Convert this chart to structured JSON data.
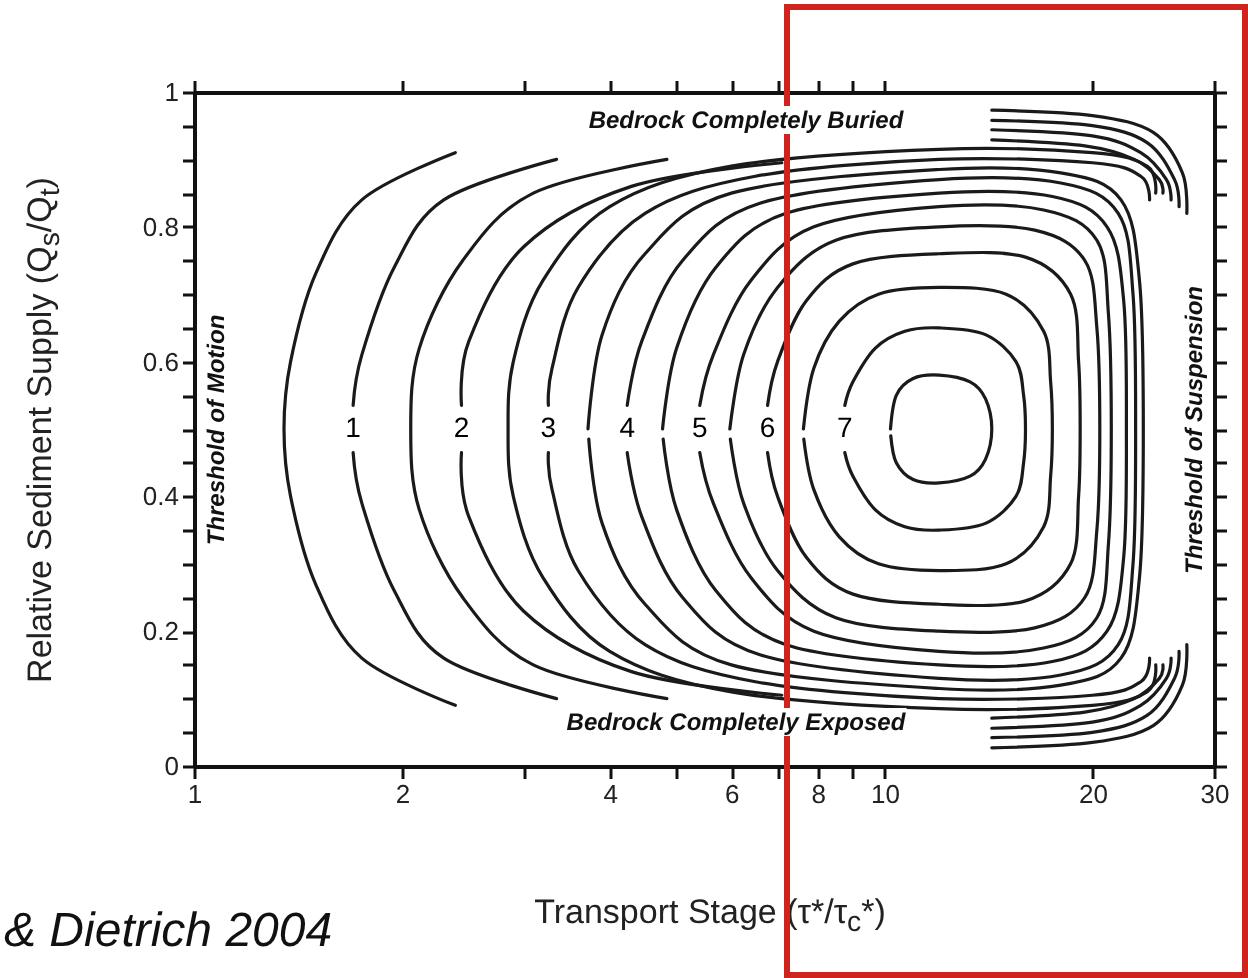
{
  "chart_data": {
    "type": "line",
    "xlabel": "Transport Stage (τ*/τ$_{c}$*)",
    "ylabel": "Relative Sediment Supply (Q$_{s}$/Q$_{t}$)",
    "log": "x",
    "xlim": [
      1,
      30
    ],
    "ylim": [
      0,
      1
    ],
    "xticks": [
      1,
      2,
      {
        "value": 3,
        "label": null
      },
      4,
      {
        "value": 5,
        "label": null
      },
      6,
      {
        "value": 7,
        "label": null
      },
      8,
      {
        "value": 9,
        "label": null
      },
      10,
      20,
      30
    ],
    "yticks": [
      0,
      {
        "value": 0.05,
        "label": null
      },
      {
        "value": 0.1,
        "label": null
      },
      {
        "value": 0.15,
        "label": null
      },
      0.2,
      {
        "value": 0.25,
        "label": null
      },
      {
        "value": 0.3,
        "label": null
      },
      {
        "value": 0.35,
        "label": null
      },
      0.4,
      {
        "value": 0.45,
        "label": null
      },
      {
        "value": 0.5,
        "label": null
      },
      {
        "value": 0.55,
        "label": null
      },
      0.6,
      {
        "value": 0.65,
        "label": null
      },
      {
        "value": 0.7,
        "label": null
      },
      {
        "value": 0.75,
        "label": null
      },
      0.8,
      {
        "value": 0.85,
        "label": null
      },
      {
        "value": 0.9,
        "label": null
      },
      {
        "value": 0.95,
        "label": null
      },
      1
    ],
    "annotations": [
      "Bedrock Completely Buried",
      "Bedrock Completely Exposed",
      "Threshold of Motion",
      "Threshold of Suspension",
      "& Dietrich 2004"
    ],
    "series": [
      {
        "color": "#1a1a1a",
        "x": [
          2.39,
          1.75,
          1.5,
          1.38,
          1.35,
          1.38,
          1.5,
          1.75,
          2.39,
          null,
          14.3,
          20,
          24.5,
          27,
          27.4,
          null,
          27.4,
          27,
          24.5,
          20,
          14.3
        ],
        "values": [
          0.09,
          0.16,
          0.27,
          0.4,
          0.5,
          0.6,
          0.73,
          0.84,
          0.91,
          null,
          0.973,
          0.965,
          0.94,
          0.88,
          0.82,
          null,
          0.18,
          0.12,
          0.06,
          0.035,
          0.027
        ]
      },
      {
        "name": "1",
        "color": "#1a1a1a",
        "x": [
          3.35,
          2.3,
          1.95,
          1.75,
          1.7,
          null,
          1.7,
          1.75,
          1.95,
          2.3,
          3.35,
          null,
          14.3,
          20,
          24,
          26.3,
          26.7,
          null,
          26.7,
          26.3,
          24,
          20,
          14.3
        ],
        "values": [
          0.1,
          0.16,
          0.26,
          0.39,
          0.465,
          null,
          0.535,
          0.61,
          0.74,
          0.84,
          0.9,
          null,
          0.958,
          0.95,
          0.925,
          0.87,
          0.83,
          null,
          0.17,
          0.13,
          0.075,
          0.05,
          0.042
        ]
      },
      {
        "color": "#1a1a1a",
        "x": [
          4.84,
          3.1,
          2.45,
          2.12,
          2.06,
          2.12,
          2.45,
          3.1,
          4.84,
          null,
          14.3,
          20,
          23.5,
          25.6,
          26,
          null,
          26,
          25.6,
          23.5,
          20,
          14.3
        ],
        "values": [
          0.1,
          0.15,
          0.25,
          0.38,
          0.5,
          0.62,
          0.75,
          0.85,
          0.9,
          null,
          0.944,
          0.935,
          0.91,
          0.87,
          0.84,
          null,
          0.16,
          0.13,
          0.09,
          0.065,
          0.056
        ]
      },
      {
        "name": "2",
        "color": "#1a1a1a",
        "x": [
          7.1,
          4.3,
          3,
          2.5,
          2.44,
          null,
          2.44,
          2.5,
          3,
          4.3,
          7.1,
          null,
          14.3,
          19.5,
          23,
          25,
          25.3,
          null,
          25.3,
          25,
          23,
          19.5,
          14.3
        ],
        "values": [
          0.105,
          0.14,
          0.23,
          0.37,
          0.465,
          null,
          0.535,
          0.63,
          0.77,
          0.86,
          0.895,
          null,
          0.929,
          0.92,
          0.9,
          0.87,
          0.85,
          null,
          0.15,
          0.13,
          0.1,
          0.08,
          0.071
        ]
      },
      {
        "color": "#1a1a1a",
        "x": [
          24.7,
          24,
          20,
          12,
          6,
          4,
          3.2,
          2.9,
          2.85,
          2.9,
          3.2,
          4,
          6,
          12,
          20,
          24,
          24.7
        ],
        "values": [
          0.15,
          0.11,
          0.09,
          0.085,
          0.11,
          0.17,
          0.28,
          0.4,
          0.5,
          0.6,
          0.72,
          0.83,
          0.89,
          0.915,
          0.91,
          0.89,
          0.85
        ]
      },
      {
        "name": "3",
        "color": "#1a1a1a",
        "x": [
          24.2,
          23.5,
          20,
          12,
          6.5,
          4.5,
          3.6,
          3.3,
          3.26,
          null,
          3.26,
          3.3,
          3.6,
          4.5,
          6.5,
          12,
          20,
          23.5,
          24.2
        ],
        "values": [
          0.16,
          0.125,
          0.105,
          0.1,
          0.125,
          0.18,
          0.29,
          0.41,
          0.465,
          null,
          0.535,
          0.59,
          0.71,
          0.82,
          0.875,
          0.9,
          0.895,
          0.875,
          0.84
        ]
      },
      {
        "color": "#1a1a1a",
        "x": [
          3.72,
          3.9,
          4.5,
          6,
          12,
          18,
          22,
          23.4,
          23.7,
          23.4,
          22,
          18,
          12,
          6,
          4.5,
          3.9,
          3.73
        ],
        "values": [
          0.5,
          0.64,
          0.76,
          0.85,
          0.885,
          0.88,
          0.84,
          0.72,
          0.5,
          0.28,
          0.16,
          0.12,
          0.115,
          0.15,
          0.24,
          0.36,
          0.485
        ]
      },
      {
        "name": "4",
        "color": "#1a1a1a",
        "x": [
          4.24,
          4.45,
          5.1,
          6.6,
          12,
          18,
          21.8,
          22.9,
          23.1,
          22.9,
          21.8,
          18,
          12,
          6.6,
          5.1,
          4.45,
          4.24
        ],
        "values": [
          0.535,
          0.63,
          0.75,
          0.835,
          0.87,
          0.865,
          0.82,
          0.7,
          0.5,
          0.3,
          0.18,
          0.135,
          0.13,
          0.165,
          0.25,
          0.37,
          0.465
        ]
      },
      {
        "color": "#1a1a1a",
        "x": [
          4.77,
          5,
          5.7,
          7.2,
          12,
          17.5,
          21,
          22.2,
          22.4,
          22.2,
          21,
          17.5,
          12,
          7.2,
          5.7,
          5,
          4.78
        ],
        "values": [
          0.5,
          0.62,
          0.74,
          0.82,
          0.85,
          0.845,
          0.8,
          0.69,
          0.5,
          0.31,
          0.2,
          0.155,
          0.15,
          0.18,
          0.26,
          0.38,
          0.485
        ]
      },
      {
        "name": "5",
        "color": "#1a1a1a",
        "x": [
          5.4,
          5.65,
          6.4,
          7.9,
          12,
          17,
          20.3,
          21.1,
          21.3,
          21.1,
          20.3,
          17,
          12,
          7.9,
          6.4,
          5.65,
          5.4
        ],
        "values": [
          0.535,
          0.61,
          0.72,
          0.8,
          0.83,
          0.825,
          0.78,
          0.67,
          0.5,
          0.33,
          0.22,
          0.175,
          0.17,
          0.2,
          0.28,
          0.39,
          0.465
        ]
      },
      {
        "color": "#1a1a1a",
        "x": [
          5.97,
          6.25,
          7,
          8.5,
          12,
          16.5,
          19.5,
          20.3,
          20.5,
          20.3,
          19.5,
          16.5,
          12,
          8.5,
          7,
          6.25,
          5.98
        ],
        "values": [
          0.5,
          0.61,
          0.71,
          0.78,
          0.8,
          0.795,
          0.75,
          0.65,
          0.5,
          0.35,
          0.25,
          0.205,
          0.2,
          0.22,
          0.29,
          0.39,
          0.485
        ]
      },
      {
        "name": "6",
        "color": "#1a1a1a",
        "x": [
          6.77,
          7,
          7.7,
          9,
          12,
          16,
          18.6,
          19.1,
          19.2,
          19.1,
          18.6,
          16,
          12,
          9,
          7.7,
          7,
          6.77
        ],
        "values": [
          0.535,
          0.6,
          0.69,
          0.745,
          0.76,
          0.755,
          0.7,
          0.6,
          0.5,
          0.4,
          0.3,
          0.245,
          0.24,
          0.255,
          0.31,
          0.4,
          0.465
        ]
      },
      {
        "color": "#1a1a1a",
        "x": [
          7.63,
          7.9,
          8.6,
          9.8,
          12,
          15,
          17,
          17.4,
          17.5,
          17.4,
          17,
          15,
          12,
          9.8,
          8.6,
          7.9,
          7.64
        ],
        "values": [
          0.5,
          0.59,
          0.66,
          0.7,
          0.71,
          0.7,
          0.645,
          0.57,
          0.5,
          0.43,
          0.355,
          0.3,
          0.29,
          0.3,
          0.34,
          0.41,
          0.485
        ]
      },
      {
        "name": "7",
        "color": "#1a1a1a",
        "x": [
          8.76,
          9,
          9.7,
          10.7,
          12,
          14,
          15.5,
          15.9,
          16,
          15.9,
          15.5,
          14,
          12,
          10.7,
          9.7,
          9,
          8.76
        ],
        "values": [
          0.535,
          0.57,
          0.62,
          0.645,
          0.65,
          0.64,
          0.6,
          0.55,
          0.5,
          0.45,
          0.4,
          0.36,
          0.35,
          0.355,
          0.38,
          0.43,
          0.465
        ]
      },
      {
        "color": "#1a1a1a",
        "x": [
          10.2,
          10.4,
          11,
          12,
          13.3,
          14,
          14.3,
          14,
          13.3,
          12,
          11,
          10.4,
          10.21
        ],
        "values": [
          0.5,
          0.55,
          0.575,
          0.58,
          0.57,
          0.545,
          0.5,
          0.455,
          0.43,
          0.42,
          0.425,
          0.45,
          0.49
        ]
      }
    ]
  }
}
